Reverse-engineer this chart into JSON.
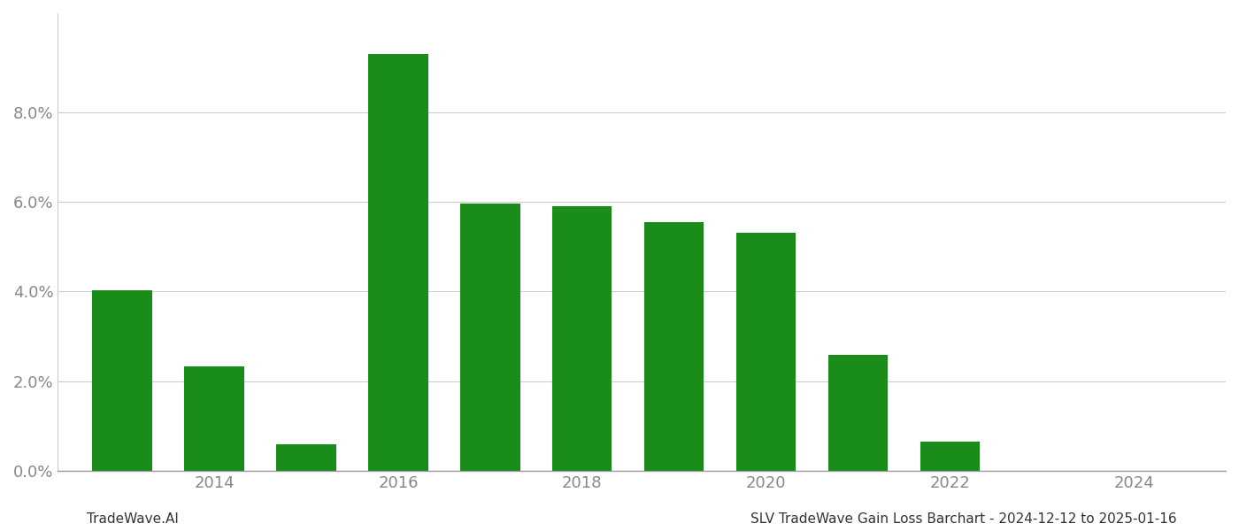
{
  "years": [
    2013,
    2014,
    2015,
    2016,
    2017,
    2018,
    2019,
    2020,
    2021,
    2022,
    2023
  ],
  "values": [
    0.0402,
    0.0233,
    0.006,
    0.093,
    0.0595,
    0.059,
    0.0555,
    0.053,
    0.0258,
    0.0065,
    0.0
  ],
  "bar_color": "#1a8c1a",
  "background_color": "#ffffff",
  "ylim": [
    0,
    0.102
  ],
  "yticks": [
    0.0,
    0.02,
    0.04,
    0.06,
    0.08
  ],
  "xtick_years": [
    2014,
    2016,
    2018,
    2020,
    2022,
    2024
  ],
  "xlim_left": 2012.3,
  "xlim_right": 2025.0,
  "footer_left": "TradeWave.AI",
  "footer_right": "SLV TradeWave Gain Loss Barchart - 2024-12-12 to 2025-01-16",
  "grid_color": "#cccccc",
  "tick_color": "#888888",
  "bar_width": 0.65,
  "tick_fontsize": 13,
  "footer_fontsize": 11
}
